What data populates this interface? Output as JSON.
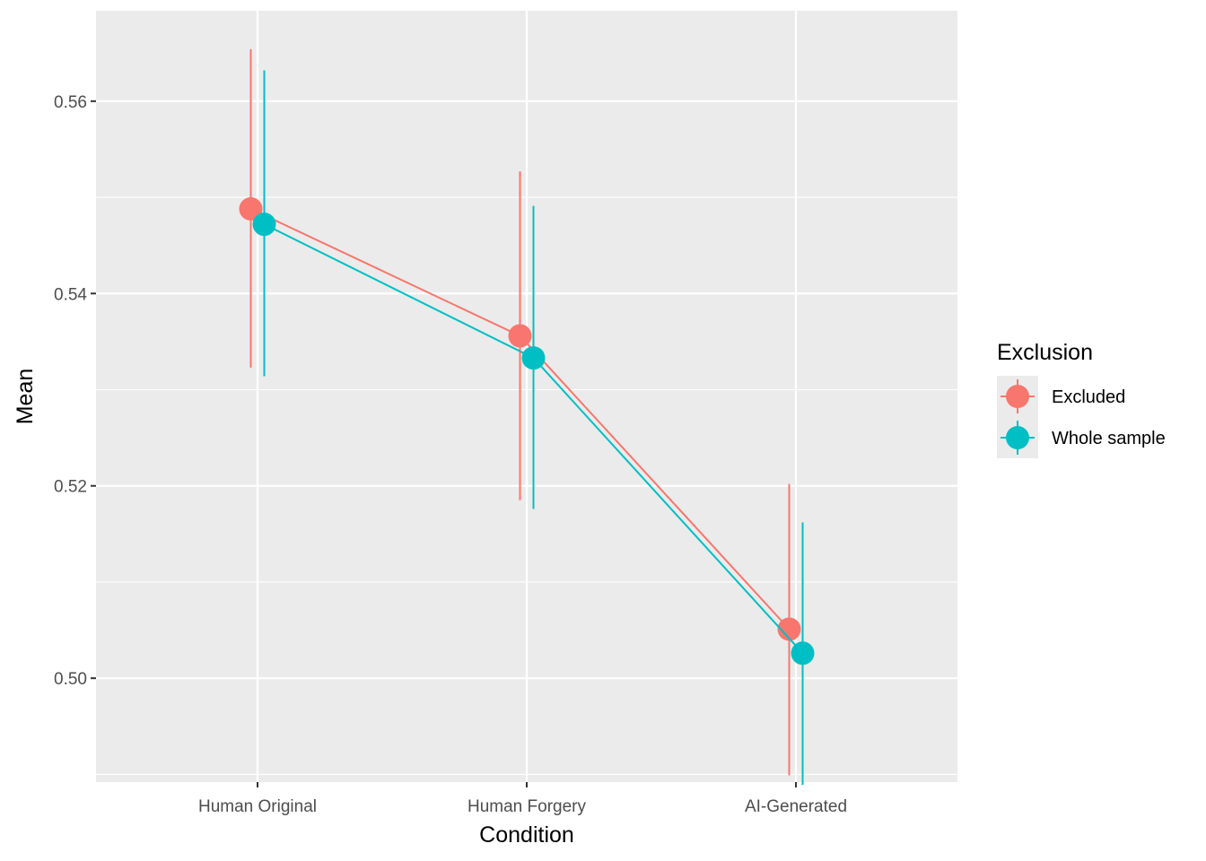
{
  "chart_data": {
    "type": "line",
    "xlabel": "Condition",
    "ylabel": "Mean",
    "categories": [
      "Human Original",
      "Human Forgery",
      "AI-Generated"
    ],
    "ylim": [
      0.4892,
      0.5694
    ],
    "yticks": [
      0.5,
      0.52,
      0.54,
      0.56
    ],
    "ytick_labels": [
      "0.50",
      "0.52",
      "0.54",
      "0.56"
    ],
    "grid": true,
    "legend": {
      "title": "Exclusion",
      "position": "right"
    },
    "series": [
      {
        "name": "Excluded",
        "color": "#F8766D",
        "values": [
          0.5488,
          0.5356,
          0.5051
        ],
        "lower": [
          0.5323,
          0.5185,
          0.4899
        ],
        "upper": [
          0.5654,
          0.5527,
          0.5202
        ]
      },
      {
        "name": "Whole sample",
        "color": "#00BFC4",
        "values": [
          0.5472,
          0.5333,
          0.5026
        ],
        "lower": [
          0.5314,
          0.5176,
          0.4889
        ],
        "upper": [
          0.5632,
          0.5491,
          0.5162
        ]
      }
    ]
  }
}
